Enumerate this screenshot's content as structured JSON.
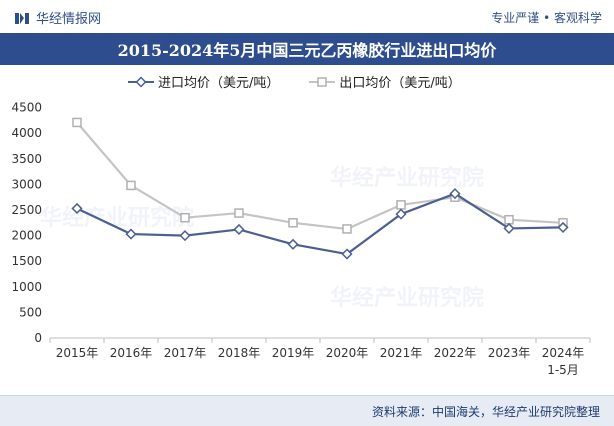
{
  "header": {
    "brand": "华经情报网",
    "tagline": "专业严谨 • 客观科学"
  },
  "title": "2015-2024年5月中国三元乙丙橡胶行业进出口均价",
  "source": "资料来源：中国海关，华经产业研究院整理",
  "watermark": "华经产业研究院",
  "colors": {
    "title_bg": "#2e4d8f",
    "import_line": "#4b5f92",
    "export_line": "#c4c4c4"
  },
  "chart_data": {
    "type": "line",
    "categories": [
      "2015年",
      "2016年",
      "2017年",
      "2018年",
      "2019年",
      "2020年",
      "2021年",
      "2022年",
      "2023年",
      "2024年\n1-5月"
    ],
    "series": [
      {
        "name": "进口均价（美元/吨）",
        "marker": "diamond",
        "values": [
          2530,
          2030,
          2000,
          2120,
          1830,
          1640,
          2420,
          2820,
          2140,
          2160
        ]
      },
      {
        "name": "出口均价（美元/吨）",
        "marker": "square",
        "values": [
          4210,
          2980,
          2350,
          2440,
          2250,
          2130,
          2600,
          2750,
          2310,
          2250
        ]
      }
    ],
    "ylim": [
      0,
      5000
    ],
    "yticks": [
      0,
      500,
      1000,
      1500,
      2000,
      2500,
      3000,
      3500,
      4000,
      4500
    ],
    "grid": false,
    "legend": "top-left"
  }
}
